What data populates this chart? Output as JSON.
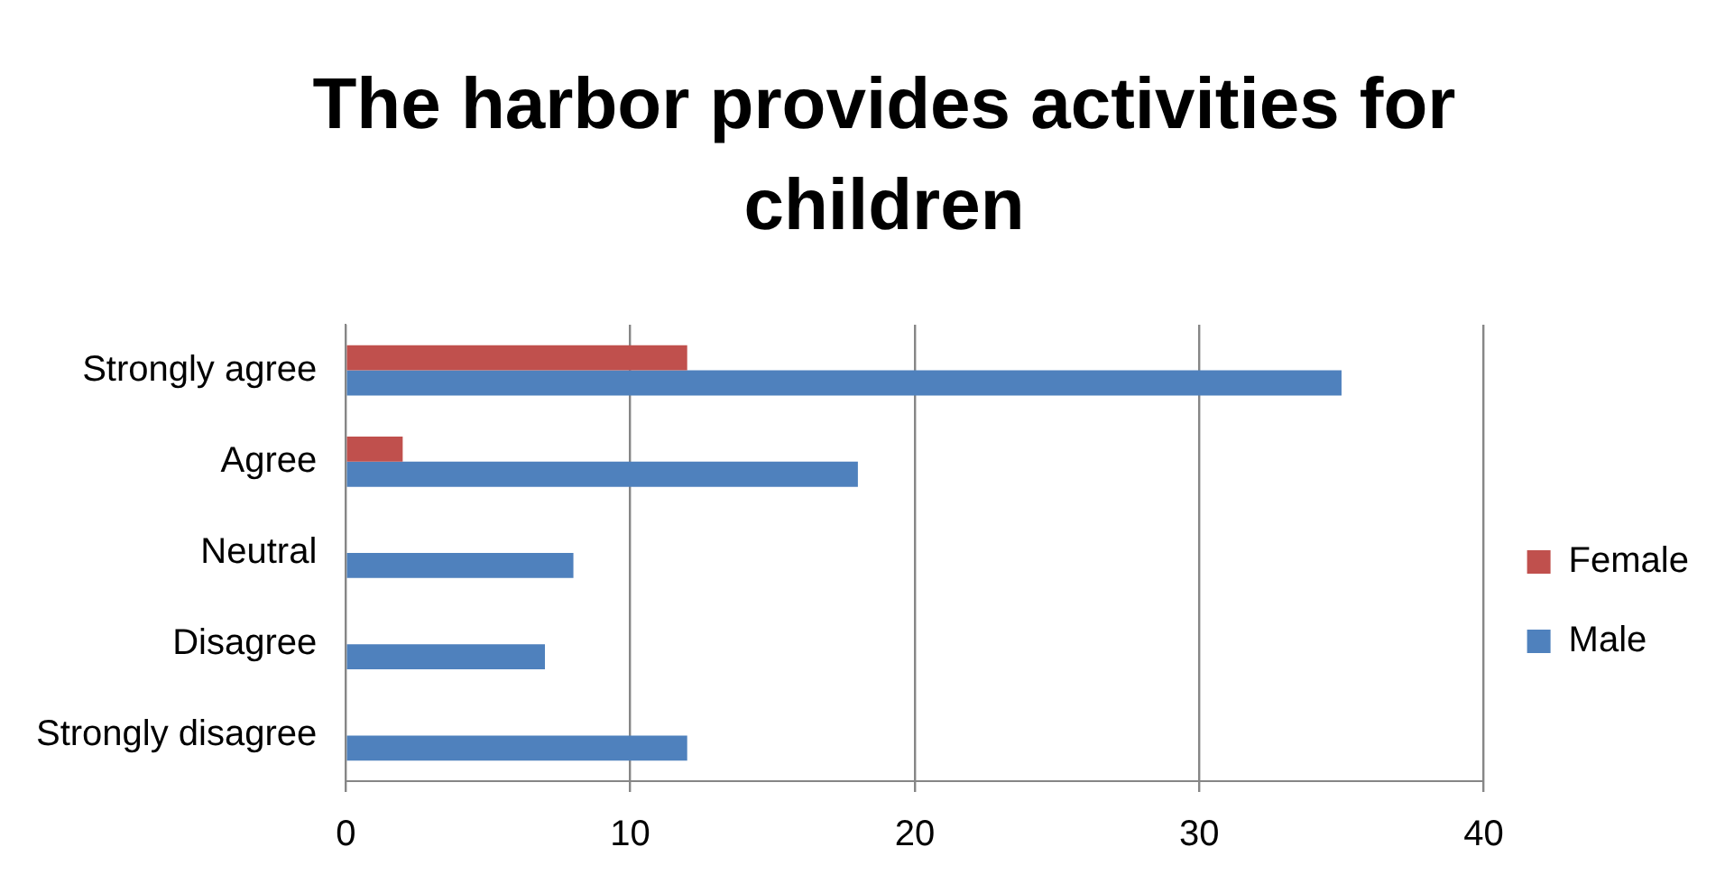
{
  "chart_data": {
    "type": "bar",
    "orientation": "horizontal",
    "title": "The harbor provides activities for children",
    "categories": [
      "Strongly agree",
      "Agree",
      "Neutral",
      "Disagree",
      "Strongly disagree"
    ],
    "series": [
      {
        "name": "Female",
        "color": "#c0504d",
        "values": [
          12,
          2,
          0,
          0,
          0
        ]
      },
      {
        "name": "Male",
        "color": "#4f81bd",
        "values": [
          35,
          18,
          8,
          7,
          12
        ]
      }
    ],
    "xlim": [
      0,
      40
    ],
    "xticks": [
      0,
      10,
      20,
      30,
      40
    ],
    "grid": "x",
    "legend": "right"
  }
}
